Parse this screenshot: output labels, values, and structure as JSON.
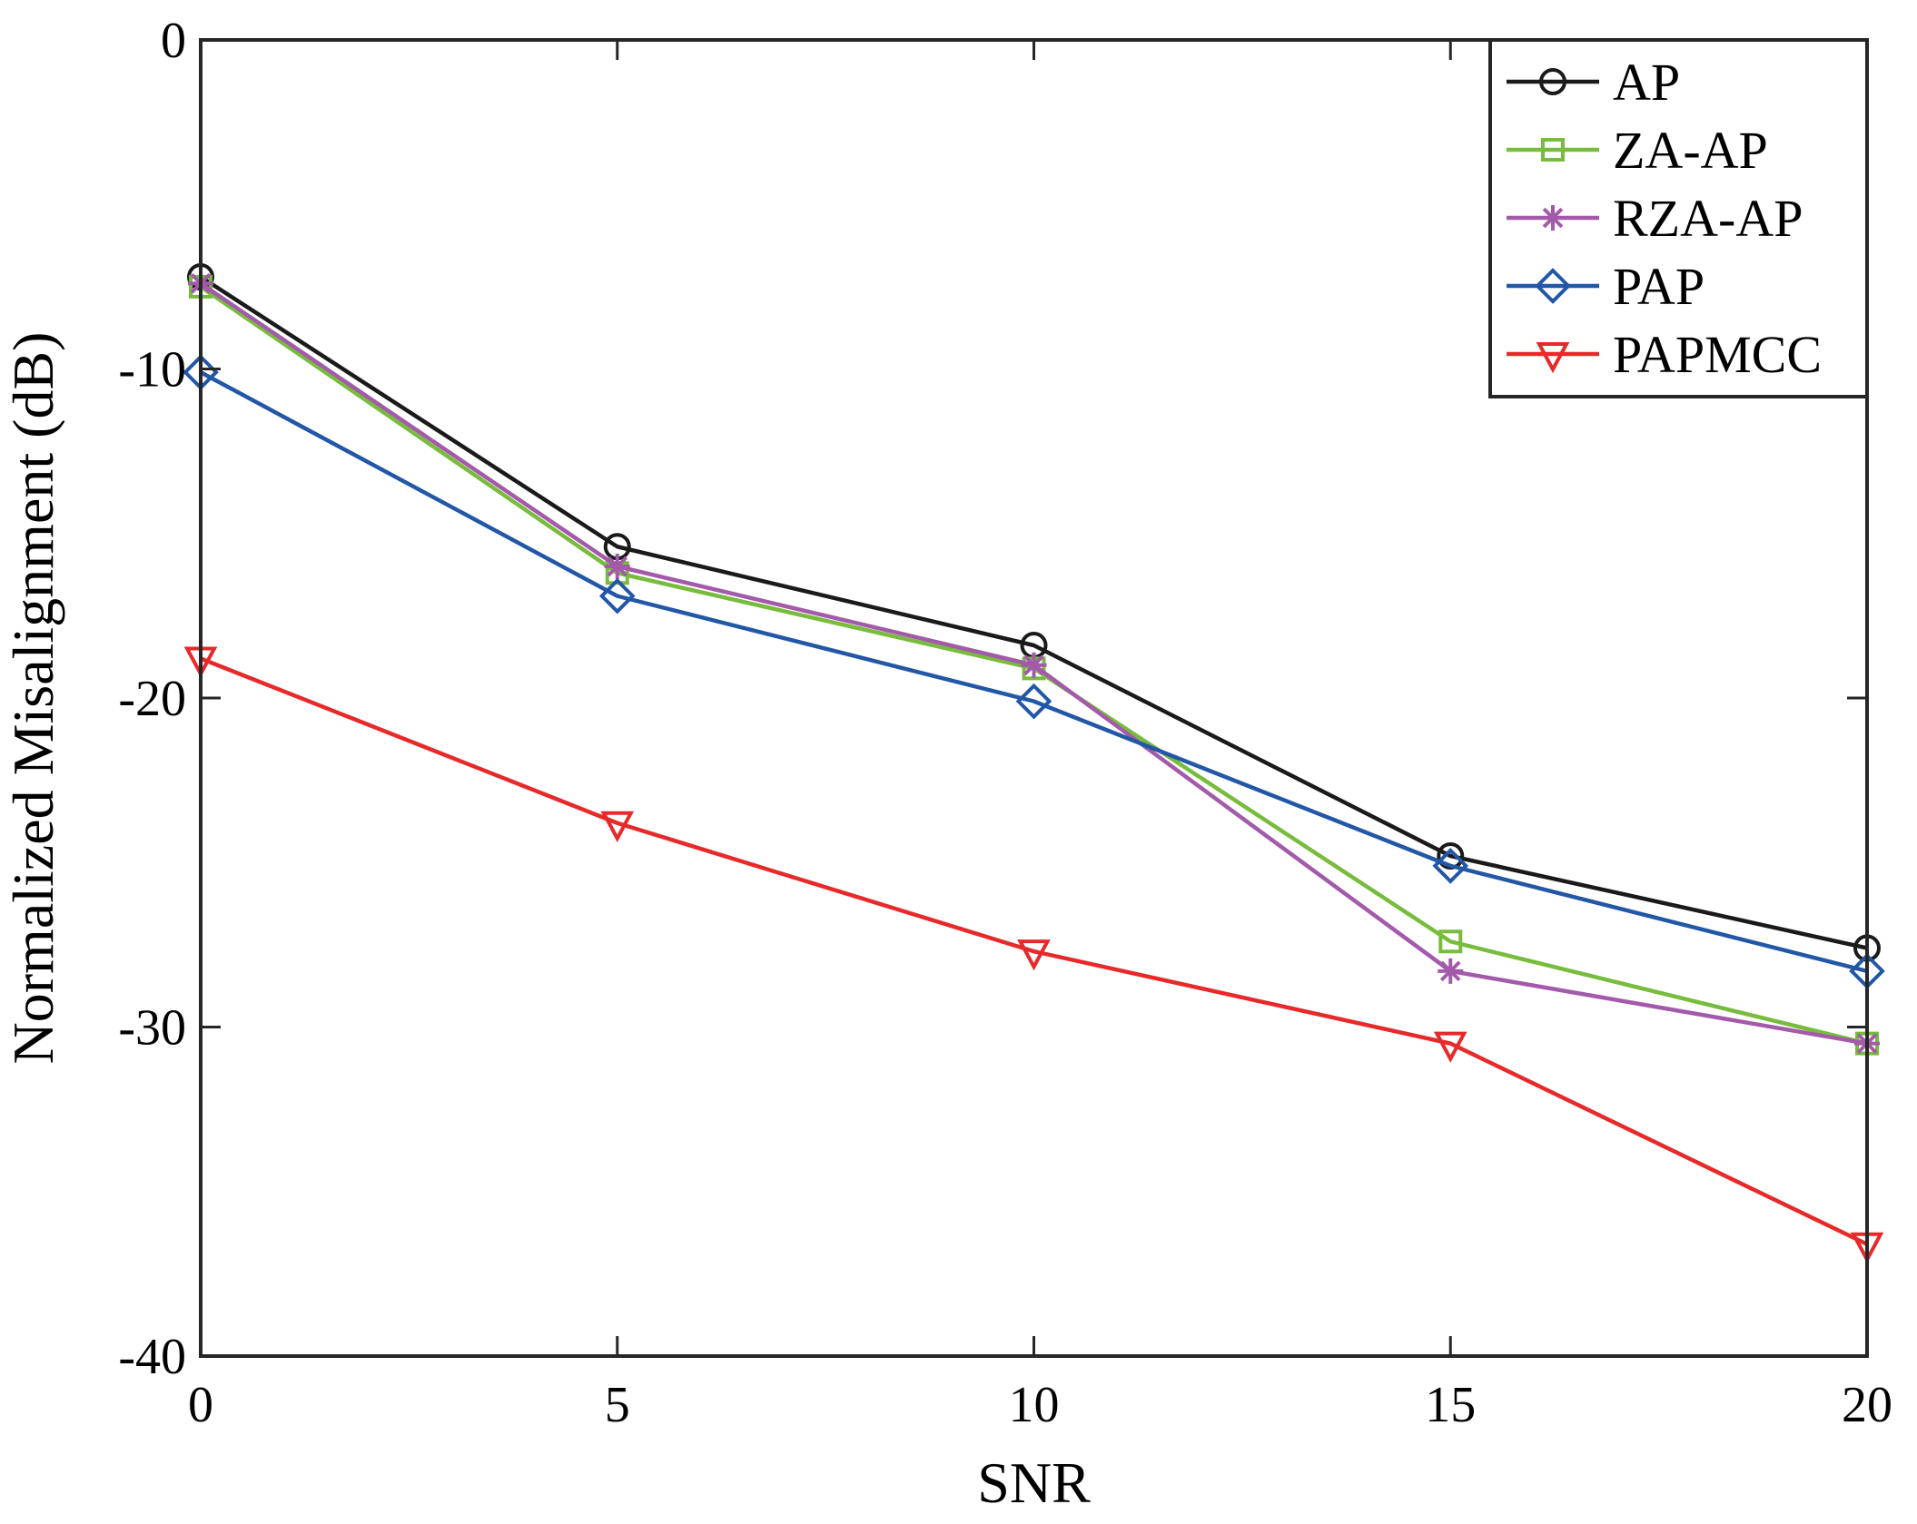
{
  "chart_data": {
    "type": "line",
    "title": "",
    "xlabel": "SNR",
    "ylabel": "Normalized Misalignment (dB)",
    "xlim": [
      0,
      20
    ],
    "ylim": [
      -40,
      0
    ],
    "xticks": [
      0,
      5,
      10,
      15,
      20
    ],
    "yticks": [
      0,
      -10,
      -20,
      -30,
      -40
    ],
    "grid": false,
    "legend_position": "top-right",
    "x": [
      0,
      5,
      10,
      15,
      20
    ],
    "series": [
      {
        "name": "AP",
        "color": "#1a1a1a",
        "marker": "circle",
        "values": [
          -7.2,
          -15.4,
          -18.4,
          -24.8,
          -27.6
        ]
      },
      {
        "name": "ZA-AP",
        "color": "#77bc3c",
        "marker": "square",
        "values": [
          -7.5,
          -16.2,
          -19.1,
          -27.4,
          -30.5
        ]
      },
      {
        "name": "RZA-AP",
        "color": "#a35aaa",
        "marker": "asterisk",
        "values": [
          -7.4,
          -16.0,
          -19.0,
          -28.3,
          -30.5
        ]
      },
      {
        "name": "PAP",
        "color": "#2257a8",
        "marker": "diamond",
        "values": [
          -10.1,
          -16.9,
          -20.1,
          -25.1,
          -28.3
        ]
      },
      {
        "name": "PAPMCC",
        "color": "#e8292a",
        "marker": "triangle-down",
        "values": [
          -18.8,
          -23.8,
          -27.7,
          -30.5,
          -36.6
        ]
      }
    ]
  }
}
